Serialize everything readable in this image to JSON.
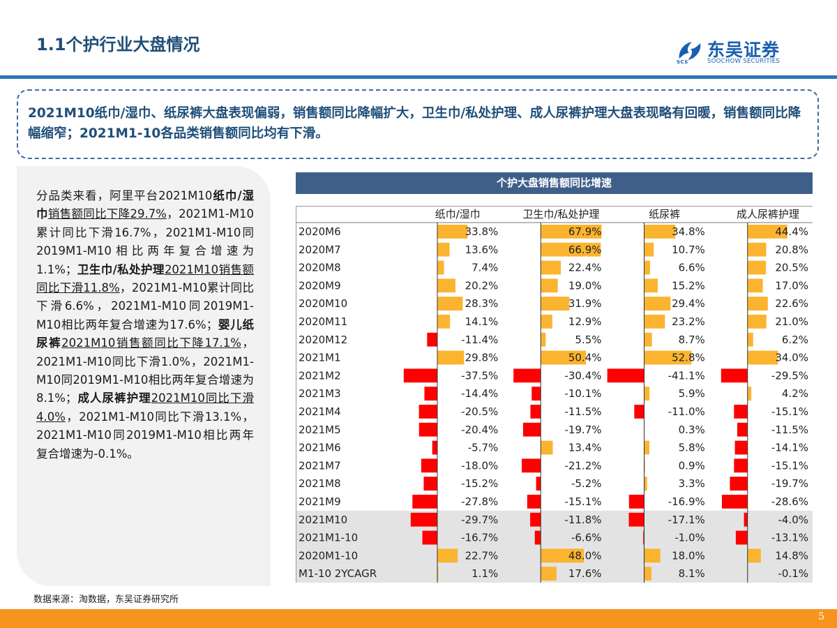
{
  "header": {
    "title": "1.1个护行业大盘情况",
    "logo_name": "东吴证券",
    "logo_sub": "SOOCHOW SECURITIES",
    "logo_abbr": "SCS",
    "brand_color": "#2e74b5"
  },
  "summary": "2021M10纸巾/湿巾、纸尿裤大盘表现偏弱，销售额同比降幅扩大，卫生巾/私处护理、成人尿裤护理大盘表现略有回暖，销售额同比降幅缩窄；2021M1-10各品类销售额同比均有下滑。",
  "analysis": [
    {
      "text": "分品类来看，阿里平台2021M10",
      "style": ""
    },
    {
      "text": "纸巾/湿巾",
      "style": "b"
    },
    {
      "text": "销售额同比下降29.7%",
      "style": "u"
    },
    {
      "text": "，2021M1-M10累计同比下滑16.7%，2021M1-M10同2019M1-M10相比两年复合增速为1.1%；",
      "style": ""
    },
    {
      "text": "卫生巾/私处护理",
      "style": "b"
    },
    {
      "text": "2021M10销售额同比下滑11.8%",
      "style": "u"
    },
    {
      "text": "，2021M1-M10累计同比下滑6.6%，2021M1-M10同2019M1-M10相比两年复合增速为17.6%；",
      "style": ""
    },
    {
      "text": "婴儿纸尿裤",
      "style": "b"
    },
    {
      "text": "2021M10销售额同比下降17.1%",
      "style": "u"
    },
    {
      "text": "，2021M1-M10同比下滑1.0%，2021M1-M10同2019M1-M10相比两年复合增速为8.1%；",
      "style": ""
    },
    {
      "text": "成人尿裤护理",
      "style": "b"
    },
    {
      "text": "2021M10同比下滑4.0%",
      "style": "u"
    },
    {
      "text": "，2021M1-M10同比下滑13.1%，2021M1-M10同2019M1-M10相比两年复合增速为-0.1%。",
      "style": ""
    }
  ],
  "source": "数据来源：淘数据，东吴证券研究所",
  "page_number": "5",
  "colors": {
    "title": "#1f4e79",
    "positive_bar": "#fbb42f",
    "negative_bar": "#ff0000",
    "chart_header_bg": "#3e5f8a",
    "highlight_row_bg": "#e3e3e3",
    "bottom_band": "#f7941d"
  },
  "chart_data": {
    "type": "table",
    "title": "个护大盘销售额同比增速",
    "rows": [
      "2020M6",
      "2020M7",
      "2020M8",
      "2020M9",
      "2020M10",
      "2020M11",
      "2020M12",
      "2021M1",
      "2021M2",
      "2021M3",
      "2021M4",
      "2021M5",
      "2021M6",
      "2021M7",
      "2021M8",
      "2021M9",
      "2021M10",
      "2021M1-10",
      "2020M1-10",
      "M1-10 2YCAGR"
    ],
    "highlight_rows": [
      "2021M10",
      "2021M1-10",
      "2020M1-10",
      "M1-10 2YCAGR"
    ],
    "unit": "%",
    "series": [
      {
        "name": "纸巾/湿巾",
        "values": [
          33.8,
          13.6,
          7.4,
          20.2,
          28.3,
          14.1,
          -11.4,
          29.8,
          -37.5,
          -14.4,
          -20.5,
          -20.4,
          -5.7,
          -18.0,
          -15.2,
          -27.8,
          -29.7,
          -16.7,
          22.7,
          1.1
        ]
      },
      {
        "name": "卫生巾/私处护理",
        "values": [
          67.9,
          66.9,
          22.4,
          19.0,
          31.9,
          12.9,
          5.5,
          50.4,
          -30.4,
          -10.1,
          -11.5,
          -19.7,
          13.4,
          -21.2,
          -5.2,
          -15.1,
          -11.8,
          -6.6,
          48.0,
          17.6
        ]
      },
      {
        "name": "纸尿裤",
        "values": [
          34.8,
          10.7,
          6.6,
          15.2,
          29.4,
          23.2,
          8.7,
          52.8,
          -41.1,
          5.9,
          -11.0,
          0.3,
          5.8,
          0.9,
          3.3,
          -16.9,
          -17.1,
          -1.0,
          18.0,
          8.1
        ]
      },
      {
        "name": "成人尿裤护理",
        "values": [
          44.4,
          20.8,
          20.5,
          17.0,
          22.6,
          21.0,
          6.2,
          34.0,
          -29.5,
          4.2,
          -15.1,
          -11.5,
          -14.1,
          -15.1,
          -19.7,
          -28.6,
          -4.0,
          -13.1,
          14.8,
          -0.1
        ]
      }
    ]
  }
}
